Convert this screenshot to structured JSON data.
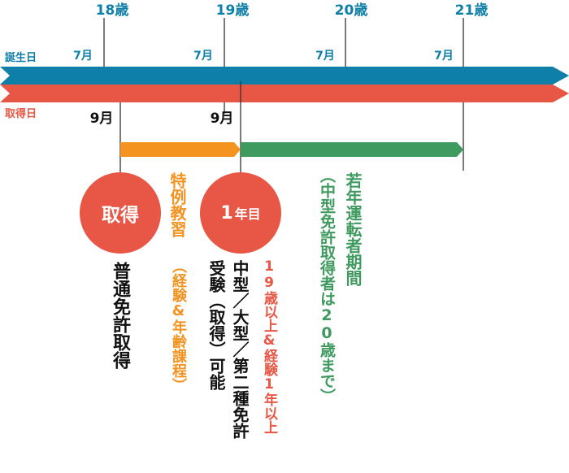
{
  "colors": {
    "blue": "#0E7FA8",
    "red": "#E85745",
    "orange": "#F4931F",
    "green": "#3E9A5E",
    "line": "#333333",
    "text": "#111111"
  },
  "timeline": {
    "birth_label": "誕生日",
    "acquire_label": "取得日",
    "ages": [
      "18歳",
      "19歳",
      "20歳",
      "21歳"
    ],
    "month_birth": "7月",
    "month_acquire": "9月"
  },
  "milestones": {
    "acquire_circle": "取得",
    "acquire_caption": "普通免許取得",
    "year1_number": "1",
    "year1_suffix": "年目",
    "year1_caption_line1": "中型／大型／第二種免許",
    "year1_caption_line2": "受験（取得）可能",
    "year1_condition": "19歳以上&経験1年以上"
  },
  "periods": {
    "special_title": "特例教習",
    "special_note": "（経験&年齢課程）",
    "young_title": "若年運転者期間",
    "young_note": "（中型免許取得者は20歳まで）"
  }
}
